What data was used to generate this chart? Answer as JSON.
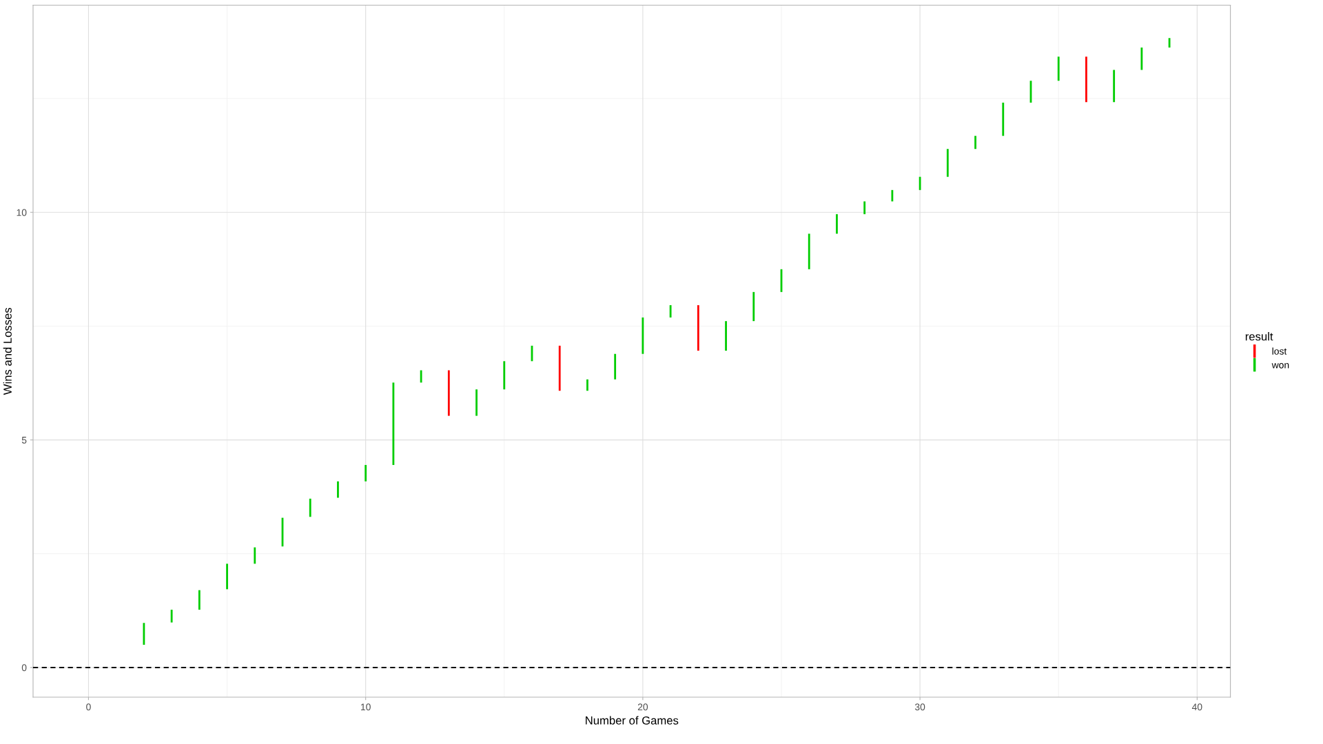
{
  "chart_data": {
    "type": "bar",
    "xlabel": "Number of Games",
    "ylabel": "Wins and Losses",
    "legend_title": "result",
    "legend": "right",
    "xlim": [
      -2,
      41.2
    ],
    "ylim": [
      -0.65,
      14.55
    ],
    "xticks": [
      0,
      10,
      20,
      30,
      40
    ],
    "yticks": [
      0,
      5,
      10
    ],
    "grid": true,
    "ref_lines": [
      {
        "axis": "y",
        "value": 0,
        "color": "#000000",
        "line_style": "dashed"
      }
    ],
    "series": [
      {
        "name": "lost",
        "color": "#ff0000",
        "x": [
          13,
          17,
          22,
          36
        ],
        "base": [
          5.53,
          6.08,
          6.96,
          12.42
        ],
        "values": [
          1.0,
          0.99,
          1.0,
          1.0
        ]
      },
      {
        "name": "won",
        "color": "#00cd00",
        "x": [
          2,
          3,
          4,
          5,
          6,
          7,
          8,
          9,
          10,
          11,
          12,
          14,
          15,
          16,
          18,
          19,
          20,
          21,
          23,
          24,
          25,
          26,
          27,
          28,
          29,
          30,
          31,
          32,
          33,
          34,
          35,
          37,
          38,
          39
        ],
        "base": [
          0.5,
          0.99,
          1.27,
          1.72,
          2.28,
          2.66,
          3.31,
          3.73,
          4.09,
          4.45,
          6.26,
          5.53,
          6.11,
          6.73,
          6.08,
          6.33,
          6.89,
          7.69,
          6.96,
          7.61,
          8.25,
          8.75,
          9.53,
          9.96,
          10.24,
          10.49,
          10.78,
          11.39,
          11.68,
          12.41,
          12.89,
          12.42,
          13.13,
          13.62
        ],
        "values": [
          0.48,
          0.28,
          0.43,
          0.56,
          0.36,
          0.63,
          0.4,
          0.36,
          0.36,
          1.81,
          0.27,
          0.58,
          0.62,
          0.34,
          0.25,
          0.56,
          0.8,
          0.27,
          0.65,
          0.64,
          0.5,
          0.78,
          0.43,
          0.28,
          0.25,
          0.29,
          0.61,
          0.29,
          0.73,
          0.48,
          0.53,
          0.71,
          0.49,
          0.21
        ]
      }
    ]
  }
}
